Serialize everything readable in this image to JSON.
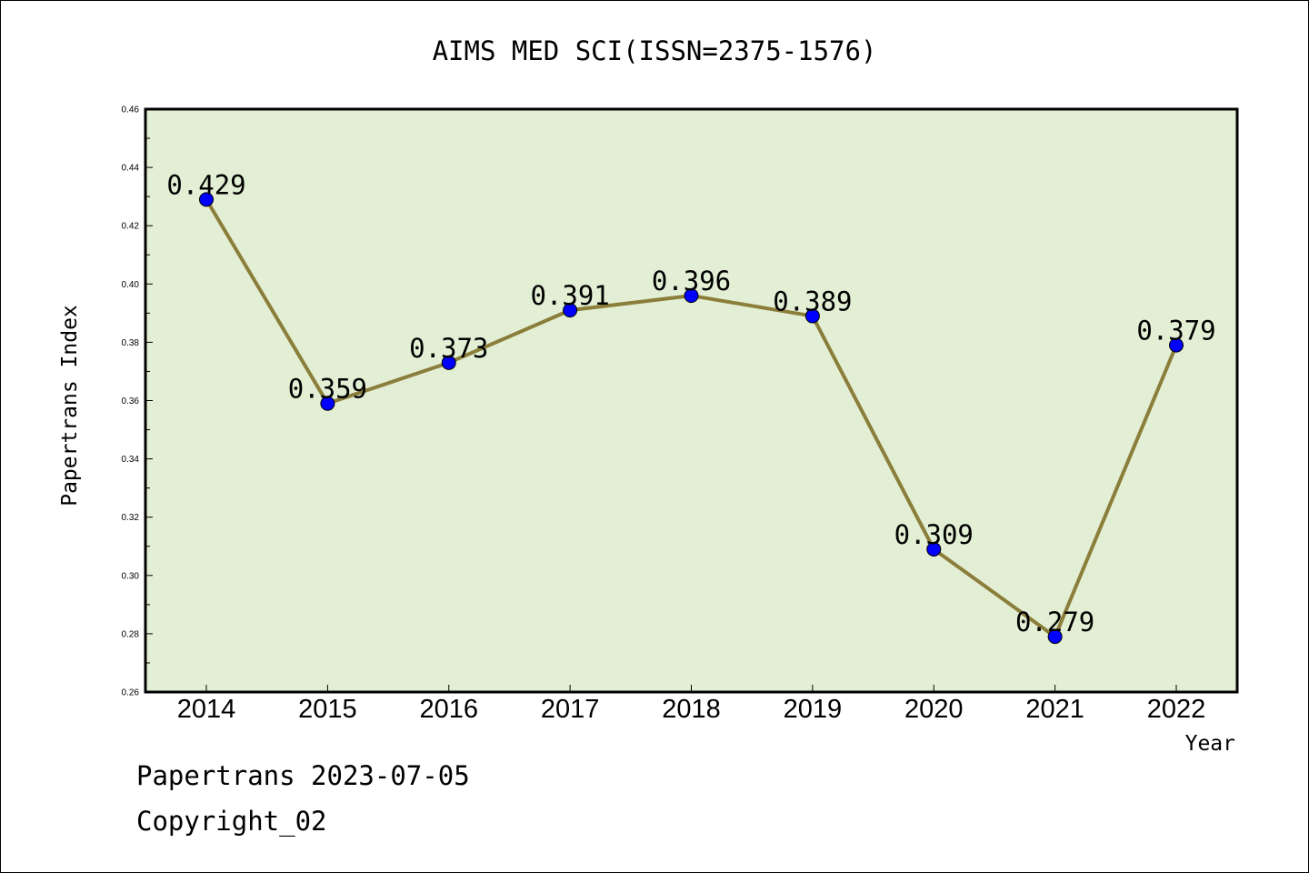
{
  "chart_data": {
    "type": "line",
    "title": "AIMS MED SCI(ISSN=2375-1576)",
    "xlabel": "Year",
    "ylabel": "Papertrans Index",
    "categories": [
      "2014",
      "2015",
      "2016",
      "2017",
      "2018",
      "2019",
      "2020",
      "2021",
      "2022"
    ],
    "series": [
      {
        "values": [
          0.429,
          0.359,
          0.373,
          0.391,
          0.396,
          0.389,
          0.309,
          0.279,
          0.379
        ],
        "data_labels": [
          "0.429",
          "0.359",
          "0.373",
          "0.391",
          "0.396",
          "0.389",
          "0.309",
          "0.279",
          "0.379"
        ]
      }
    ],
    "ylim": [
      0.26,
      0.46
    ],
    "yticks": [
      "0.26",
      "0.28",
      "0.30",
      "0.32",
      "0.34",
      "0.36",
      "0.38",
      "0.40",
      "0.42",
      "0.44",
      "0.46"
    ],
    "grid": false,
    "legend": "none",
    "colors": {
      "plot_background": "#e2efd4",
      "line": "#8b7d3a",
      "marker": "#0000ff",
      "axis": "#000000"
    }
  },
  "footer": {
    "source": "Papertrans 2023-07-05",
    "copyright": "Copyright_02"
  }
}
